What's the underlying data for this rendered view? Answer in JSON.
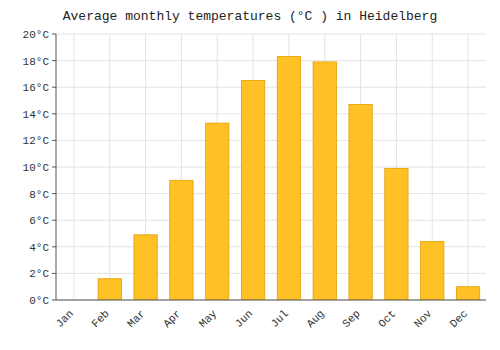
{
  "chart_data": {
    "type": "bar",
    "title": "Average monthly temperatures (°C ) in Heidelberg",
    "categories": [
      "Jan",
      "Feb",
      "Mar",
      "Apr",
      "May",
      "Jun",
      "Jul",
      "Aug",
      "Sep",
      "Oct",
      "Nov",
      "Dec"
    ],
    "values": [
      0.0,
      1.6,
      4.9,
      9.0,
      13.3,
      16.5,
      18.3,
      17.9,
      14.7,
      9.9,
      4.4,
      1.0
    ],
    "color": "#FFC125",
    "ylim": [
      0,
      20
    ],
    "yticks": [
      {
        "value": 0,
        "label": "0°C"
      },
      {
        "value": 2,
        "label": "2°C"
      },
      {
        "value": 4,
        "label": "4°C"
      },
      {
        "value": 6,
        "label": "6°C"
      },
      {
        "value": 8,
        "label": "8°C"
      },
      {
        "value": 10,
        "label": "10°C"
      },
      {
        "value": 12,
        "label": "12°C"
      },
      {
        "value": 14,
        "label": "14°C"
      },
      {
        "value": 16,
        "label": "16°C"
      },
      {
        "value": 18,
        "label": "18°C"
      },
      {
        "value": 20,
        "label": "20°C"
      }
    ],
    "grid": true
  }
}
